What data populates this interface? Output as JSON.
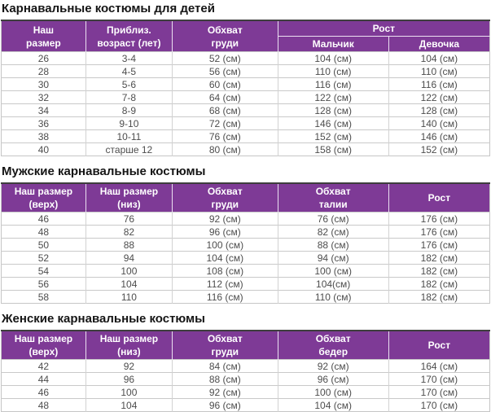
{
  "colors": {
    "header_bg": "#7e3a96",
    "header_text": "#ffffff",
    "title_text": "#151515",
    "cell_text": "#4d4d4d"
  },
  "tables": [
    {
      "title": "Карнавальные костюмы для детей",
      "header": {
        "columns": [
          [
            "Наш",
            "размер"
          ],
          [
            "Приблиз.",
            "возраст (лет)"
          ],
          [
            "Обхват",
            "груди"
          ]
        ],
        "group": {
          "label": "Рост",
          "sub": [
            "Мальчик",
            "Девочка"
          ]
        }
      },
      "rows": [
        [
          "26",
          "3-4",
          "52 (см)",
          "104 (см)",
          "104 (см)"
        ],
        [
          "28",
          "4-5",
          "56 (см)",
          "110 (см)",
          "110 (см)"
        ],
        [
          "30",
          "5-6",
          "60 (см)",
          "116 (см)",
          "116 (см)"
        ],
        [
          "32",
          "7-8",
          "64 (см)",
          "122 (см)",
          "122 (см)"
        ],
        [
          "34",
          "8-9",
          "68 (см)",
          "128 (см)",
          "128 (см)"
        ],
        [
          "36",
          "9-10",
          "72 (см)",
          "146 (см)",
          "140 (см)"
        ],
        [
          "38",
          "10-11",
          "76 (см)",
          "152 (см)",
          "146 (см)"
        ],
        [
          "40",
          "старше 12",
          "80 (см)",
          "158 (см)",
          "152 (см)"
        ]
      ]
    },
    {
      "title": "Мужские карнавальные костюмы",
      "header": {
        "columns": [
          [
            "Наш размер",
            "(верх)"
          ],
          [
            "Наш размер",
            "(низ)"
          ],
          [
            "Обхват",
            "груди"
          ],
          [
            "Обхват",
            "талии"
          ],
          [
            "Рост"
          ]
        ]
      },
      "rows": [
        [
          "46",
          "76",
          "92 (см)",
          "76 (см)",
          "176 (см)"
        ],
        [
          "48",
          "82",
          "96 (см)",
          "82 (см)",
          "176 (см)"
        ],
        [
          "50",
          "88",
          "100 (см)",
          "88 (см)",
          "176 (см)"
        ],
        [
          "52",
          "94",
          "104 (см)",
          "94 (см)",
          "182 (см)"
        ],
        [
          "54",
          "100",
          "108 (см)",
          "100 (см)",
          "182 (см)"
        ],
        [
          "56",
          "104",
          "112 (см)",
          "104(см)",
          "182 (см)"
        ],
        [
          "58",
          "110",
          "116 (см)",
          "110 (см)",
          "182 (см)"
        ]
      ]
    },
    {
      "title": "Женские карнавальные костюмы",
      "header": {
        "columns": [
          [
            "Наш размер",
            "(верх)"
          ],
          [
            "Наш размер",
            "(низ)"
          ],
          [
            "Обхват",
            "груди"
          ],
          [
            "Обхват",
            "бедер"
          ],
          [
            "Рост"
          ]
        ]
      },
      "rows": [
        [
          "42",
          "92",
          "84 (см)",
          "92 (см)",
          "164 (см)"
        ],
        [
          "44",
          "96",
          "88 (см)",
          "96 (см)",
          "170 (см)"
        ],
        [
          "46",
          "100",
          "92 (см)",
          "100 (см)",
          "170 (см)"
        ],
        [
          "48",
          "104",
          "96 (см)",
          "104 (см)",
          "170 (см)"
        ]
      ]
    }
  ]
}
